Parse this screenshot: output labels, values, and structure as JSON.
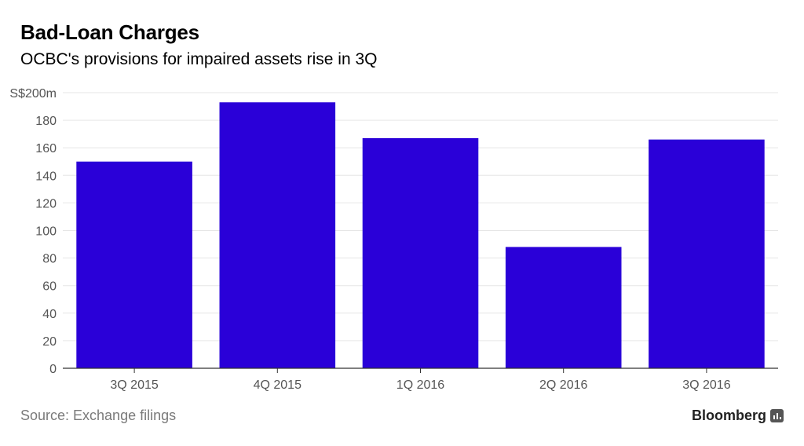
{
  "header": {
    "title": "Bad-Loan Charges",
    "subtitle": "OCBC's provisions for impaired assets rise in 3Q"
  },
  "footer": {
    "source": "Source: Exchange filings",
    "brand": "Bloomberg",
    "brand_icon": "bar-chart-icon"
  },
  "colors": {
    "bar": "#2a00d8",
    "grid": "#e6e6e6",
    "axis": "#333333",
    "tick_label": "#555555"
  },
  "chart_data": {
    "type": "bar",
    "title": "Bad-Loan Charges",
    "subtitle": "OCBC's provisions for impaired assets rise in 3Q",
    "categories": [
      "3Q 2015",
      "4Q 2015",
      "1Q 2016",
      "2Q 2016",
      "3Q 2016"
    ],
    "values": [
      150,
      193,
      167,
      88,
      166
    ],
    "ylim": [
      0,
      200
    ],
    "yticks": [
      0,
      20,
      40,
      60,
      80,
      100,
      120,
      140,
      160,
      180,
      200
    ],
    "ytick_labels": [
      "0",
      "20",
      "40",
      "60",
      "80",
      "100",
      "120",
      "140",
      "160",
      "180",
      "S$200m"
    ],
    "grid": true,
    "legend": "none"
  }
}
